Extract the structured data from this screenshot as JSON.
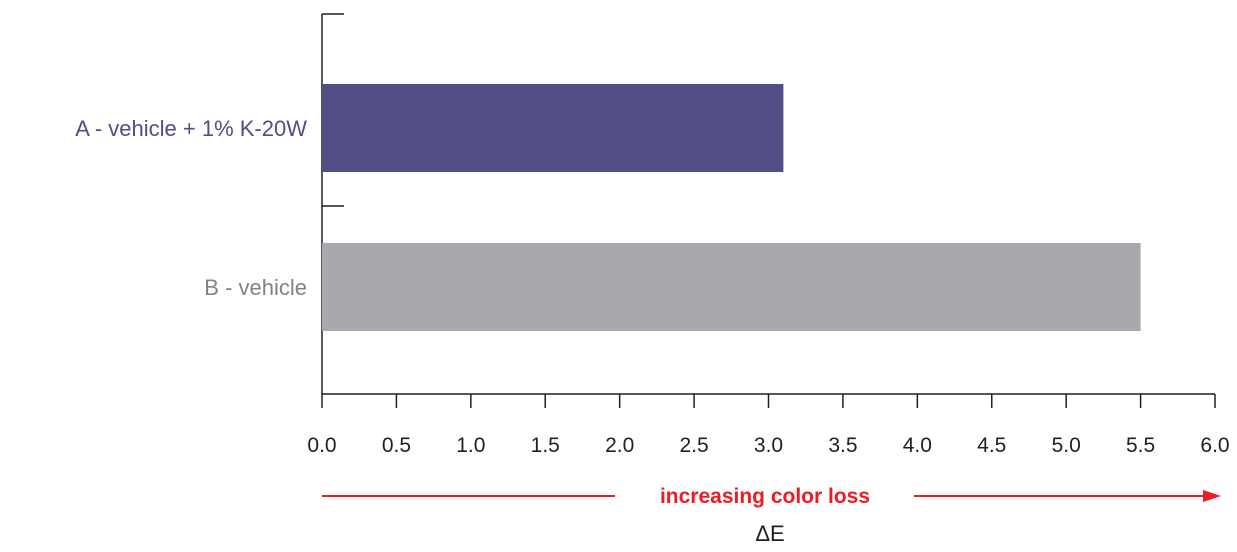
{
  "chart_data": {
    "type": "bar",
    "orientation": "horizontal",
    "title": "",
    "xlabel": "ΔE",
    "ylabel": "",
    "xlim": [
      0,
      6
    ],
    "x_ticks": [
      "0.0",
      "0.5",
      "1.0",
      "1.5",
      "2.0",
      "2.5",
      "3.0",
      "3.5",
      "4.0",
      "4.5",
      "5.0",
      "5.5",
      "6.0"
    ],
    "categories": [
      "A - vehicle + 1% K-20W",
      "B - vehicle"
    ],
    "values": [
      3.1,
      5.5
    ],
    "colors": [
      "#524e85",
      "#a7a9ac"
    ],
    "label_colors": [
      "#524e85",
      "#808285"
    ],
    "grid": false,
    "legend": "none",
    "annotation": {
      "text": "increasing color loss",
      "color": "#ed1c24",
      "direction": "right"
    }
  },
  "colors": {
    "axis": "#231f20"
  }
}
